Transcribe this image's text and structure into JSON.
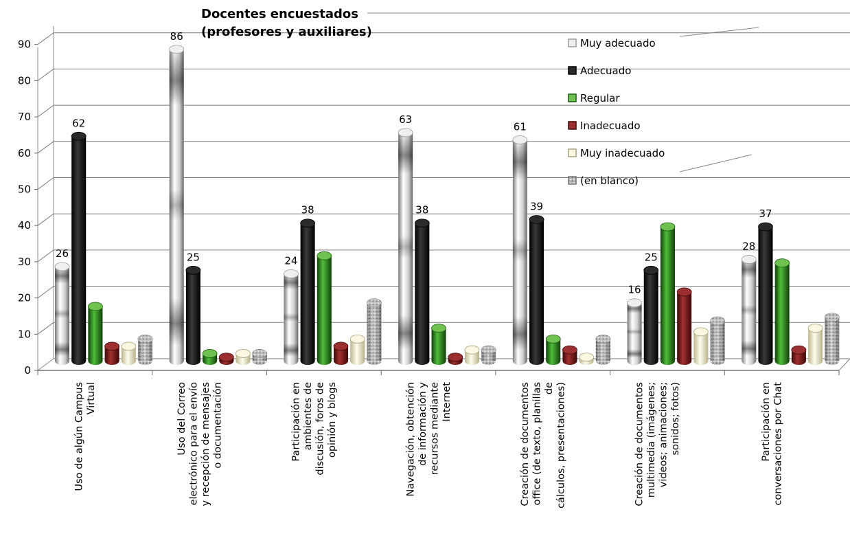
{
  "chart_data": {
    "type": "bar",
    "title_lines": [
      "Docentes encuestados",
      "(profesores y auxiliares)"
    ],
    "ylim": [
      0,
      90
    ],
    "yticks": [
      0,
      10,
      20,
      30,
      40,
      50,
      60,
      70,
      80,
      90
    ],
    "categories": [
      [
        "Uso de algún Campus",
        "Virtual"
      ],
      [
        "Uso del Correo",
        "electrónico para el envío",
        "y recepción de mensajes",
        "o documentación"
      ],
      [
        "Participación en",
        "ambientes de",
        "discusión, foros de",
        "opinión y blogs"
      ],
      [
        "Navegación, obtención",
        "de información y",
        "recursos mediante",
        "Internet"
      ],
      [
        "Creación de documentos",
        "office (de texto,  planillas",
        "de",
        "cálculos, presentaciones)"
      ],
      [
        "Creación de documentos",
        "multimedia (imágenes;",
        "videos; animaciones;",
        "sonidos; fotos)"
      ],
      [
        "Participación en",
        "conversaciones por Chat"
      ]
    ],
    "series": [
      {
        "name": "Muy adecuado",
        "values": [
          26,
          86,
          24,
          63,
          61,
          16,
          28
        ],
        "labels": [
          "26",
          "86",
          "24",
          "63",
          "61",
          "16",
          "28"
        ]
      },
      {
        "name": "Adecuado",
        "values": [
          62,
          25,
          38,
          38,
          39,
          25,
          37
        ],
        "labels": [
          "62",
          "25",
          "38",
          "38",
          "39",
          "25",
          "37"
        ]
      },
      {
        "name": "Regular",
        "values": [
          15,
          2,
          29,
          9,
          6,
          37,
          27
        ],
        "labels": [
          "",
          "",
          "",
          "",
          "",
          "",
          ""
        ]
      },
      {
        "name": "Inadecuado",
        "values": [
          4,
          1,
          4,
          1,
          3,
          19,
          3
        ],
        "labels": [
          "",
          "",
          "",
          "",
          "",
          "",
          ""
        ]
      },
      {
        "name": "Muy inadecuado",
        "values": [
          4,
          2,
          6,
          3,
          1,
          8,
          9
        ],
        "labels": [
          "",
          "",
          "",
          "",
          "",
          "",
          ""
        ]
      },
      {
        "name": "(en blanco)",
        "values": [
          6,
          2,
          16,
          3,
          6,
          11,
          12
        ],
        "labels": [
          "",
          "",
          "",
          "",
          "",
          "",
          ""
        ]
      }
    ],
    "colors": {
      "muy_adecuado": "#c8c8c8",
      "adecuado": "#111111",
      "regular": "#2e8b1e",
      "inadecuado": "#7a1a1a",
      "muy_inadecuado": "#f3efd2",
      "en_blanco": "#a8a8a8"
    },
    "legend_position": "top-right",
    "grid": true
  }
}
